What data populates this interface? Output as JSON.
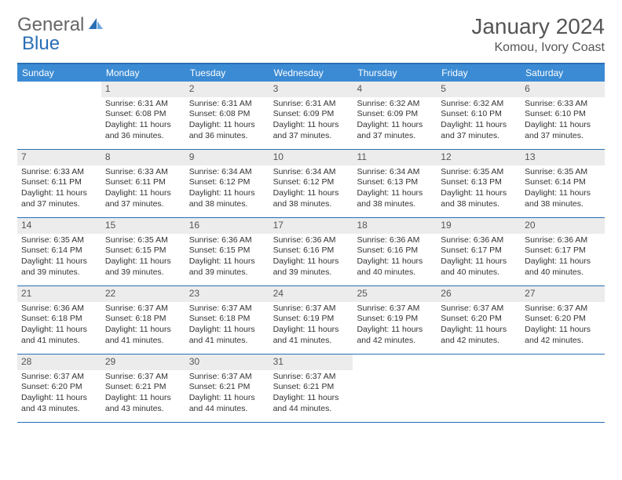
{
  "logo": {
    "general": "General",
    "blue": "Blue"
  },
  "title": "January 2024",
  "location": "Komou, Ivory Coast",
  "colors": {
    "header_bg": "#3b8bd4",
    "border": "#2a6fb5",
    "daynum_bg": "#ececec",
    "text": "#333333"
  },
  "daysOfWeek": [
    "Sunday",
    "Monday",
    "Tuesday",
    "Wednesday",
    "Thursday",
    "Friday",
    "Saturday"
  ],
  "layout": {
    "firstDayOffset": 1,
    "daysInMonth": 31
  },
  "days": {
    "1": {
      "sunrise": "Sunrise: 6:31 AM",
      "sunset": "Sunset: 6:08 PM",
      "daylight": "Daylight: 11 hours and 36 minutes."
    },
    "2": {
      "sunrise": "Sunrise: 6:31 AM",
      "sunset": "Sunset: 6:08 PM",
      "daylight": "Daylight: 11 hours and 36 minutes."
    },
    "3": {
      "sunrise": "Sunrise: 6:31 AM",
      "sunset": "Sunset: 6:09 PM",
      "daylight": "Daylight: 11 hours and 37 minutes."
    },
    "4": {
      "sunrise": "Sunrise: 6:32 AM",
      "sunset": "Sunset: 6:09 PM",
      "daylight": "Daylight: 11 hours and 37 minutes."
    },
    "5": {
      "sunrise": "Sunrise: 6:32 AM",
      "sunset": "Sunset: 6:10 PM",
      "daylight": "Daylight: 11 hours and 37 minutes."
    },
    "6": {
      "sunrise": "Sunrise: 6:33 AM",
      "sunset": "Sunset: 6:10 PM",
      "daylight": "Daylight: 11 hours and 37 minutes."
    },
    "7": {
      "sunrise": "Sunrise: 6:33 AM",
      "sunset": "Sunset: 6:11 PM",
      "daylight": "Daylight: 11 hours and 37 minutes."
    },
    "8": {
      "sunrise": "Sunrise: 6:33 AM",
      "sunset": "Sunset: 6:11 PM",
      "daylight": "Daylight: 11 hours and 37 minutes."
    },
    "9": {
      "sunrise": "Sunrise: 6:34 AM",
      "sunset": "Sunset: 6:12 PM",
      "daylight": "Daylight: 11 hours and 38 minutes."
    },
    "10": {
      "sunrise": "Sunrise: 6:34 AM",
      "sunset": "Sunset: 6:12 PM",
      "daylight": "Daylight: 11 hours and 38 minutes."
    },
    "11": {
      "sunrise": "Sunrise: 6:34 AM",
      "sunset": "Sunset: 6:13 PM",
      "daylight": "Daylight: 11 hours and 38 minutes."
    },
    "12": {
      "sunrise": "Sunrise: 6:35 AM",
      "sunset": "Sunset: 6:13 PM",
      "daylight": "Daylight: 11 hours and 38 minutes."
    },
    "13": {
      "sunrise": "Sunrise: 6:35 AM",
      "sunset": "Sunset: 6:14 PM",
      "daylight": "Daylight: 11 hours and 38 minutes."
    },
    "14": {
      "sunrise": "Sunrise: 6:35 AM",
      "sunset": "Sunset: 6:14 PM",
      "daylight": "Daylight: 11 hours and 39 minutes."
    },
    "15": {
      "sunrise": "Sunrise: 6:35 AM",
      "sunset": "Sunset: 6:15 PM",
      "daylight": "Daylight: 11 hours and 39 minutes."
    },
    "16": {
      "sunrise": "Sunrise: 6:36 AM",
      "sunset": "Sunset: 6:15 PM",
      "daylight": "Daylight: 11 hours and 39 minutes."
    },
    "17": {
      "sunrise": "Sunrise: 6:36 AM",
      "sunset": "Sunset: 6:16 PM",
      "daylight": "Daylight: 11 hours and 39 minutes."
    },
    "18": {
      "sunrise": "Sunrise: 6:36 AM",
      "sunset": "Sunset: 6:16 PM",
      "daylight": "Daylight: 11 hours and 40 minutes."
    },
    "19": {
      "sunrise": "Sunrise: 6:36 AM",
      "sunset": "Sunset: 6:17 PM",
      "daylight": "Daylight: 11 hours and 40 minutes."
    },
    "20": {
      "sunrise": "Sunrise: 6:36 AM",
      "sunset": "Sunset: 6:17 PM",
      "daylight": "Daylight: 11 hours and 40 minutes."
    },
    "21": {
      "sunrise": "Sunrise: 6:36 AM",
      "sunset": "Sunset: 6:18 PM",
      "daylight": "Daylight: 11 hours and 41 minutes."
    },
    "22": {
      "sunrise": "Sunrise: 6:37 AM",
      "sunset": "Sunset: 6:18 PM",
      "daylight": "Daylight: 11 hours and 41 minutes."
    },
    "23": {
      "sunrise": "Sunrise: 6:37 AM",
      "sunset": "Sunset: 6:18 PM",
      "daylight": "Daylight: 11 hours and 41 minutes."
    },
    "24": {
      "sunrise": "Sunrise: 6:37 AM",
      "sunset": "Sunset: 6:19 PM",
      "daylight": "Daylight: 11 hours and 41 minutes."
    },
    "25": {
      "sunrise": "Sunrise: 6:37 AM",
      "sunset": "Sunset: 6:19 PM",
      "daylight": "Daylight: 11 hours and 42 minutes."
    },
    "26": {
      "sunrise": "Sunrise: 6:37 AM",
      "sunset": "Sunset: 6:20 PM",
      "daylight": "Daylight: 11 hours and 42 minutes."
    },
    "27": {
      "sunrise": "Sunrise: 6:37 AM",
      "sunset": "Sunset: 6:20 PM",
      "daylight": "Daylight: 11 hours and 42 minutes."
    },
    "28": {
      "sunrise": "Sunrise: 6:37 AM",
      "sunset": "Sunset: 6:20 PM",
      "daylight": "Daylight: 11 hours and 43 minutes."
    },
    "29": {
      "sunrise": "Sunrise: 6:37 AM",
      "sunset": "Sunset: 6:21 PM",
      "daylight": "Daylight: 11 hours and 43 minutes."
    },
    "30": {
      "sunrise": "Sunrise: 6:37 AM",
      "sunset": "Sunset: 6:21 PM",
      "daylight": "Daylight: 11 hours and 44 minutes."
    },
    "31": {
      "sunrise": "Sunrise: 6:37 AM",
      "sunset": "Sunset: 6:21 PM",
      "daylight": "Daylight: 11 hours and 44 minutes."
    }
  }
}
